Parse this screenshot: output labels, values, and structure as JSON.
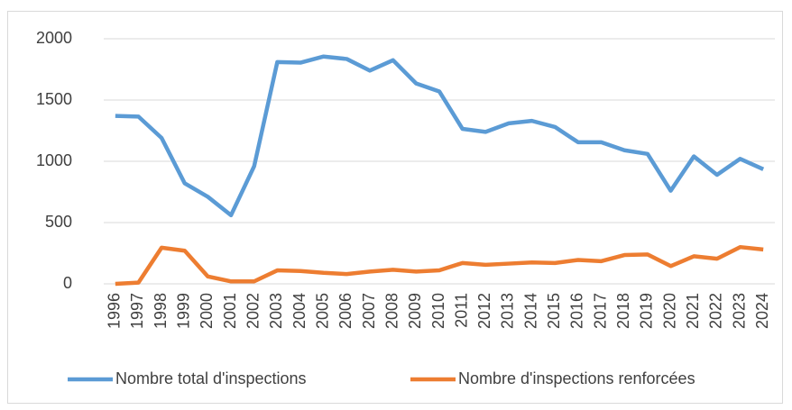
{
  "chart_data": {
    "type": "line",
    "categories": [
      "1996",
      "1997",
      "1998",
      "1999",
      "2000",
      "2001",
      "2002",
      "2003",
      "2004",
      "2005",
      "2006",
      "2007",
      "2008",
      "2009",
      "2010",
      "2011",
      "2012",
      "2013",
      "2014",
      "2015",
      "2016",
      "2017",
      "2018",
      "2019",
      "2020",
      "2021",
      "2022",
      "2023",
      "2024"
    ],
    "series": [
      {
        "name": "Nombre total d'inspections",
        "color": "#5b9bd5",
        "values": [
          1370,
          1365,
          1190,
          820,
          710,
          560,
          960,
          1810,
          1805,
          1855,
          1835,
          1740,
          1825,
          1635,
          1570,
          1265,
          1240,
          1310,
          1330,
          1280,
          1155,
          1155,
          1090,
          1060,
          760,
          1040,
          890,
          1020,
          935
        ]
      },
      {
        "name": "Nombre d'inspections renforcées",
        "color": "#ed7d31",
        "values": [
          0,
          10,
          295,
          270,
          60,
          20,
          20,
          110,
          105,
          90,
          80,
          100,
          115,
          100,
          110,
          170,
          155,
          165,
          175,
          170,
          195,
          185,
          235,
          240,
          145,
          225,
          205,
          300,
          280
        ]
      }
    ],
    "ylim": [
      0,
      2000
    ],
    "yticks": [
      0,
      500,
      1000,
      1500,
      2000
    ],
    "grid": true,
    "legend": "bottom"
  }
}
